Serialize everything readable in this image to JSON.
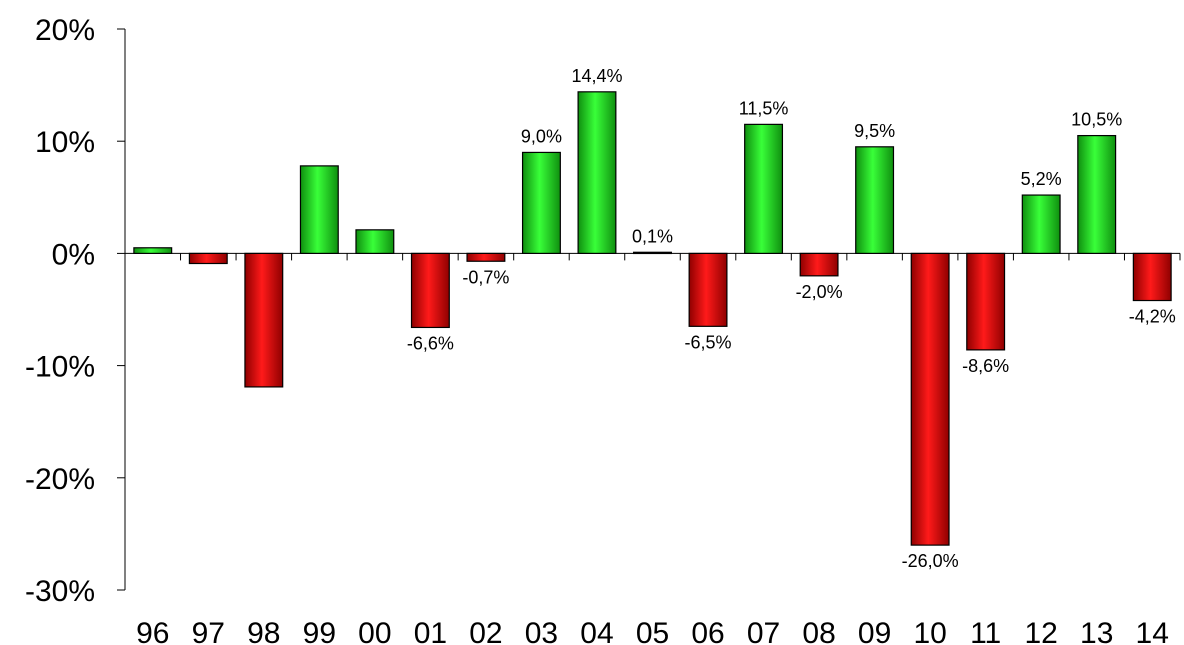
{
  "chart_data": {
    "type": "bar",
    "title": "",
    "xlabel": "",
    "ylabel": "",
    "ylim": [
      -30,
      20
    ],
    "yticks": [
      20,
      10,
      0,
      -10,
      -20,
      -30
    ],
    "ytick_labels": [
      "20%",
      "10%",
      "0%",
      "-10%",
      "-20%",
      "-30%"
    ],
    "categories": [
      "96",
      "97",
      "98",
      "99",
      "00",
      "01",
      "02",
      "03",
      "04",
      "05",
      "06",
      "07",
      "08",
      "09",
      "10",
      "11",
      "12",
      "13",
      "14"
    ],
    "values": [
      0.5,
      -0.9,
      -11.9,
      7.8,
      2.1,
      -6.6,
      -0.7,
      9.0,
      14.4,
      0.1,
      -6.5,
      11.5,
      -2.0,
      9.5,
      -26.0,
      -8.6,
      5.2,
      10.5,
      -4.2
    ],
    "data_labels": [
      "",
      "",
      "",
      "",
      "",
      "-6,6%",
      "-0,7%",
      "9,0%",
      "14,4%",
      "0,1%",
      "-6,5%",
      "11,5%",
      "-2,0%",
      "9,5%",
      "-26,0%",
      "-8,6%",
      "5,2%",
      "10,5%",
      "-4,2%"
    ],
    "grid": false,
    "colors": {
      "positive": "#22cc22",
      "negative": "#dd1111"
    }
  }
}
